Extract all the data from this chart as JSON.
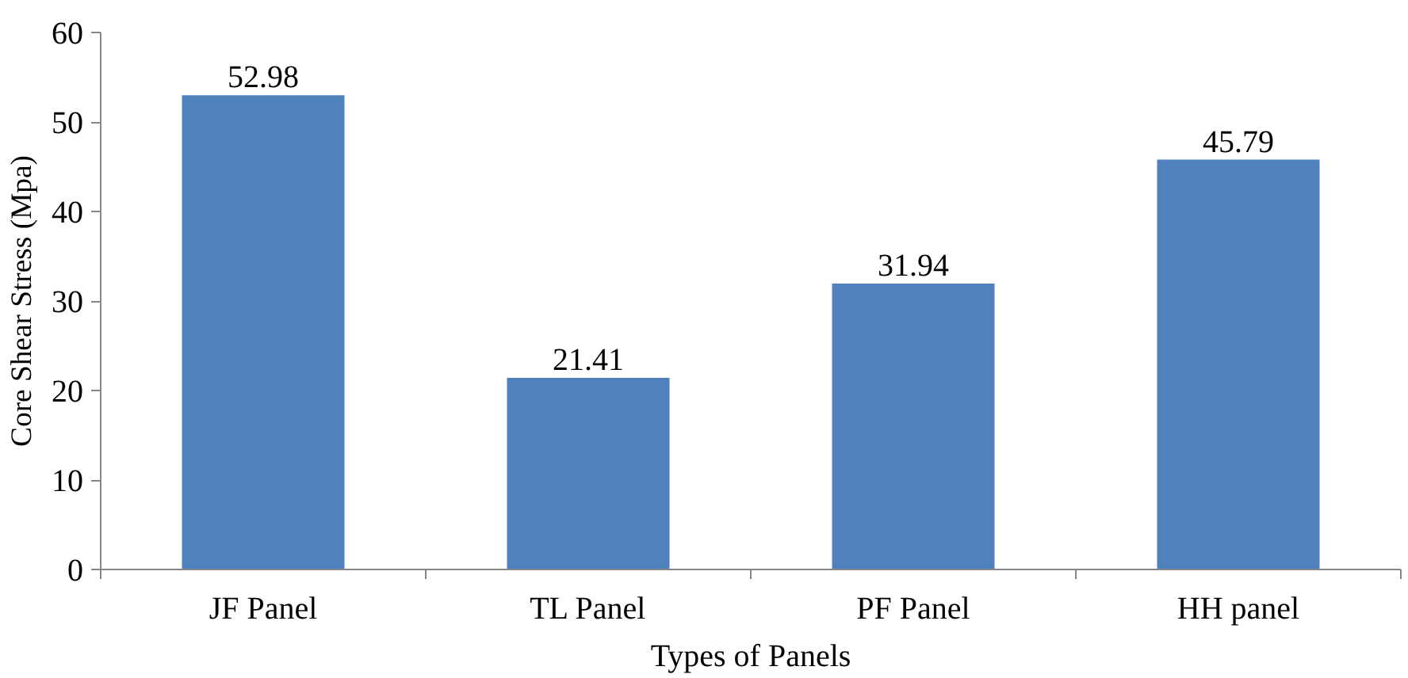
{
  "chart_data": {
    "type": "bar",
    "xlabel": "Types of Panels",
    "ylabel": "Core Shear Stress (Mpa)",
    "categories": [
      "JF Panel",
      "TL Panel",
      "PF Panel",
      "HH panel"
    ],
    "values": [
      52.98,
      21.41,
      31.94,
      45.79
    ],
    "color": "#4f81bd",
    "ylim": [
      0,
      60
    ],
    "yticks": [
      0,
      10,
      20,
      30,
      40,
      50,
      60
    ],
    "data_labels": true,
    "grid": false
  }
}
